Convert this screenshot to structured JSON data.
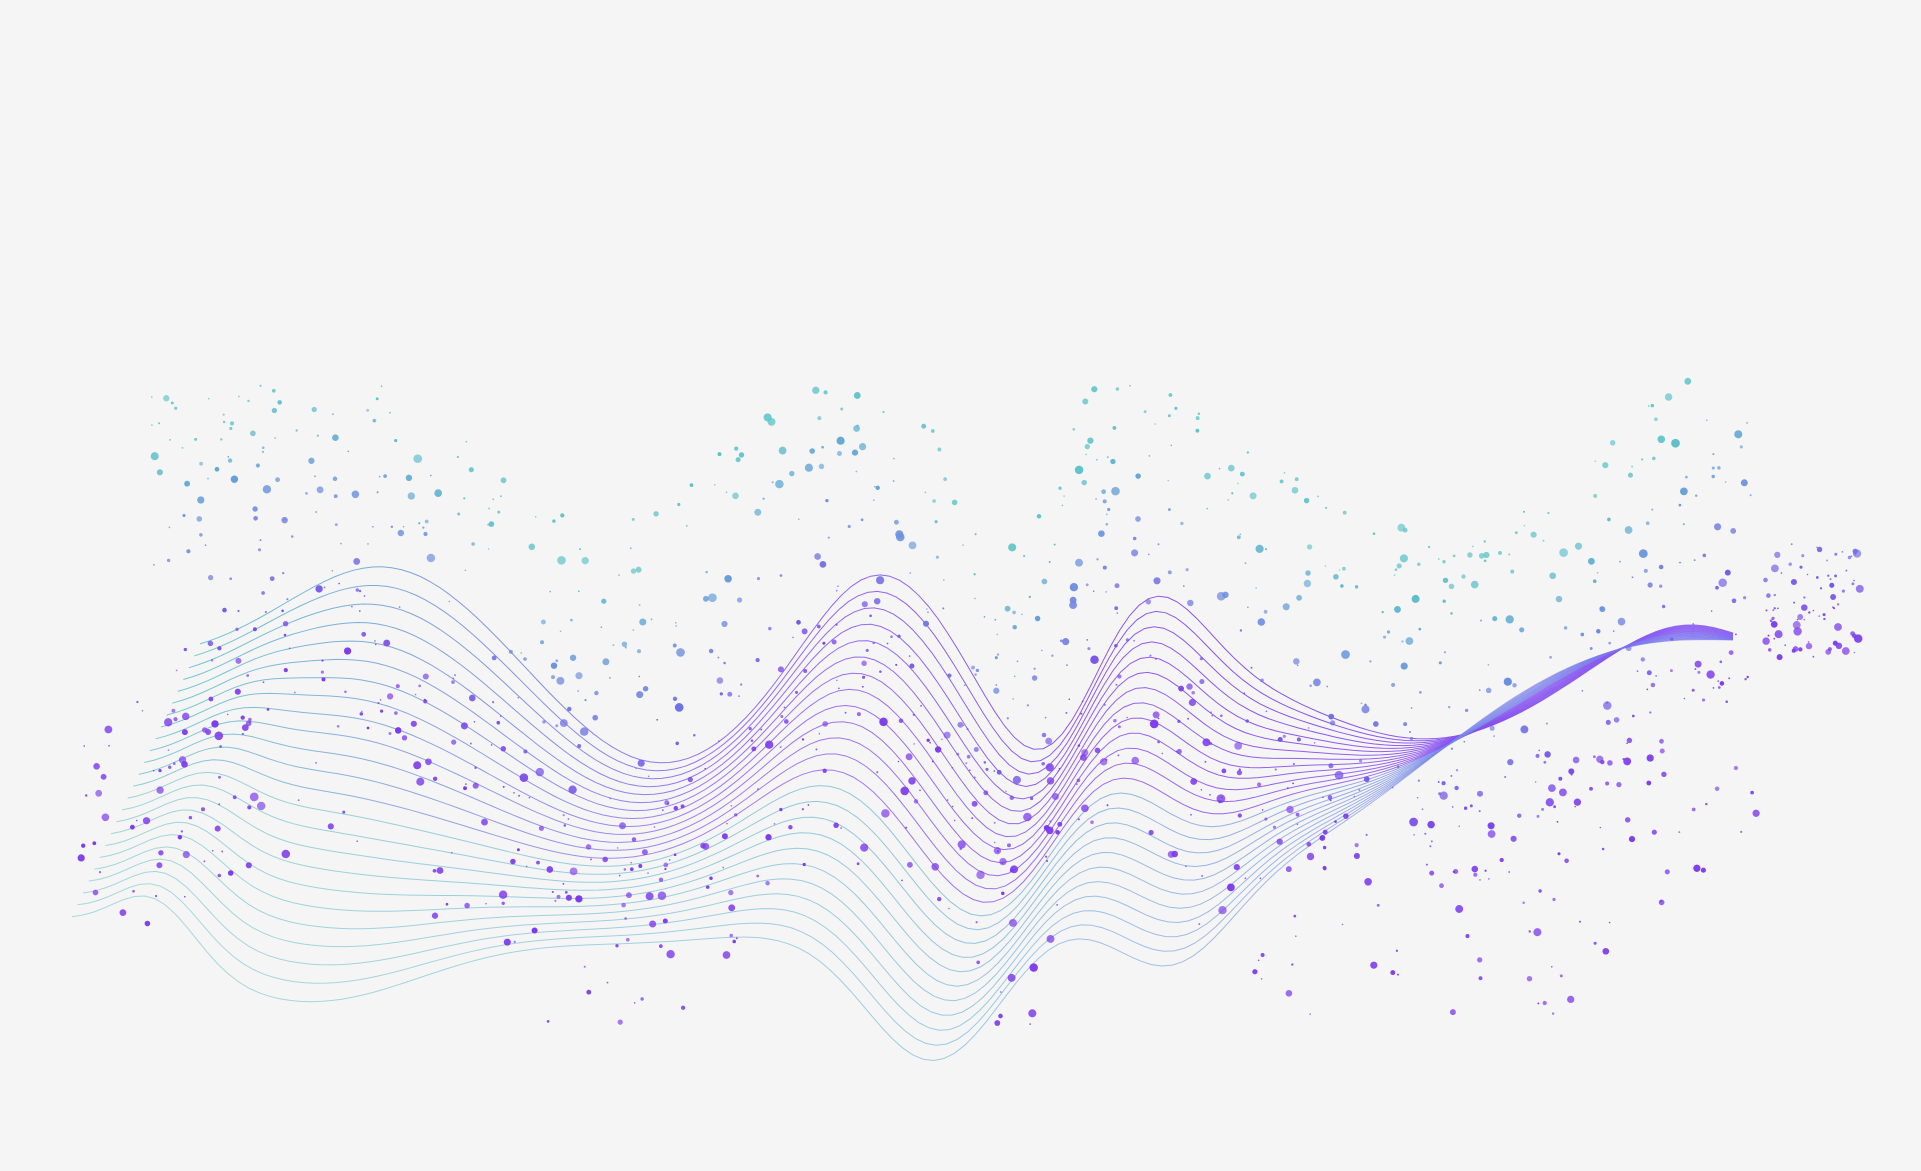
{
  "illustration": {
    "subject": "abstract-particle-wave",
    "colors": {
      "background": "#f5f5f5",
      "violet": "#7c3aed",
      "teal": "#5ec4c9",
      "blue": "#6c8ee0"
    },
    "wave_line_count": 24,
    "particle_count_approx": 1400
  }
}
